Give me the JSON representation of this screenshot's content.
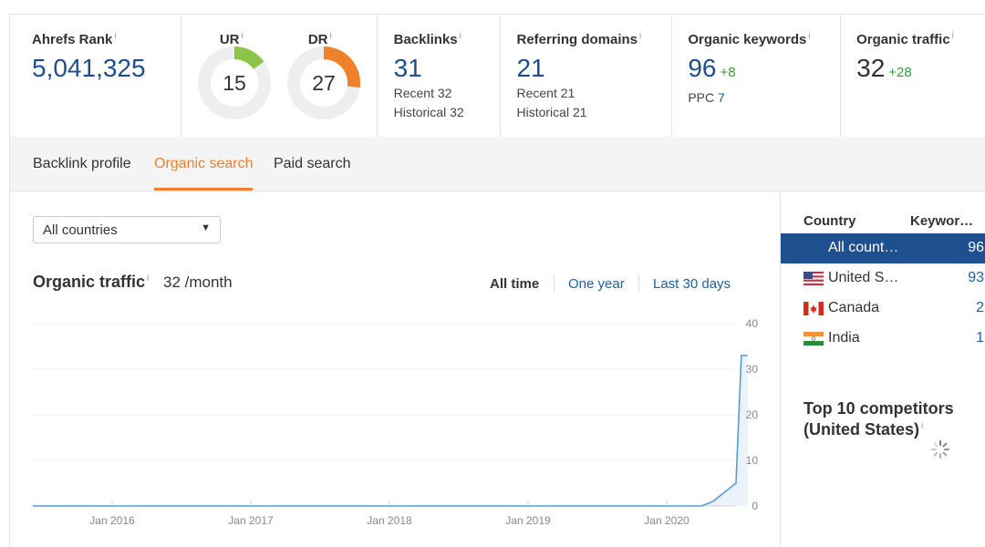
{
  "metrics": {
    "ahrefs_rank": {
      "title": "Ahrefs Rank",
      "info": "i",
      "value": "5,041,325"
    },
    "ur": {
      "title": "UR",
      "info": "i",
      "value": "15",
      "fraction": 0.15,
      "color": "#8cc34a"
    },
    "dr": {
      "title": "DR",
      "info": "i",
      "value": "27",
      "fraction": 0.27,
      "color": "#f0802a"
    },
    "backlinks": {
      "title": "Backlinks",
      "info": "i",
      "value": "31",
      "recent": "Recent 32",
      "historical": "Historical 32"
    },
    "referring_domains": {
      "title": "Referring domains",
      "info": "i",
      "value": "21",
      "recent": "Recent 21",
      "historical": "Historical 21"
    },
    "organic_keywords": {
      "title": "Organic keywords",
      "info": "i",
      "value": "96",
      "delta": "+8",
      "ppc_label": "PPC",
      "ppc_value": "7"
    },
    "organic_traffic": {
      "title": "Organic traffic",
      "info": "i",
      "value": "32",
      "delta": "+28"
    }
  },
  "tabs": [
    {
      "label": "Backlink profile",
      "active": false
    },
    {
      "label": "Organic search",
      "active": true
    },
    {
      "label": "Paid search",
      "active": false
    }
  ],
  "filter": {
    "selected": "All countries"
  },
  "traffic": {
    "title": "Organic traffic",
    "info": "i",
    "value": "32 /month",
    "ranges": [
      {
        "label": "All time",
        "selected": true
      },
      {
        "label": "One year",
        "selected": false
      },
      {
        "label": "Last 30 days",
        "selected": false
      }
    ]
  },
  "countries": {
    "head_country": "Country",
    "head_keywords": "Keywor…",
    "rows": [
      {
        "name": "All count…",
        "value": "96",
        "flag": "",
        "selected": true
      },
      {
        "name": "United S…",
        "value": "93",
        "flag": "us-flag-icon",
        "selected": false
      },
      {
        "name": "Canada",
        "value": "2",
        "flag": "ca-flag-icon",
        "selected": false
      },
      {
        "name": "India",
        "value": "1",
        "flag": "in-flag-icon",
        "selected": false
      }
    ]
  },
  "competitors": {
    "line1": "Top 10 competitors",
    "line2": "(United States)",
    "info": "i"
  },
  "chart_data": {
    "type": "area",
    "x_ticks": [
      "Jan 2016",
      "Jan 2017",
      "Jan 2018",
      "Jan 2019",
      "Jan 2020"
    ],
    "y_ticks": [
      0,
      10,
      20,
      30,
      40
    ],
    "ylim": [
      0,
      40
    ],
    "grid": true,
    "color": "#5b9bd5",
    "series": [
      {
        "x": [
          "2015-06",
          "2016-01",
          "2017-01",
          "2018-01",
          "2019-01",
          "2020-01",
          "2020-04",
          "2020-05",
          "2020-06",
          "2020-07",
          "2020-07-15",
          "2020-08"
        ],
        "values": [
          0,
          0,
          0,
          0,
          0,
          0,
          0,
          1,
          3,
          5,
          33,
          33
        ]
      }
    ]
  }
}
